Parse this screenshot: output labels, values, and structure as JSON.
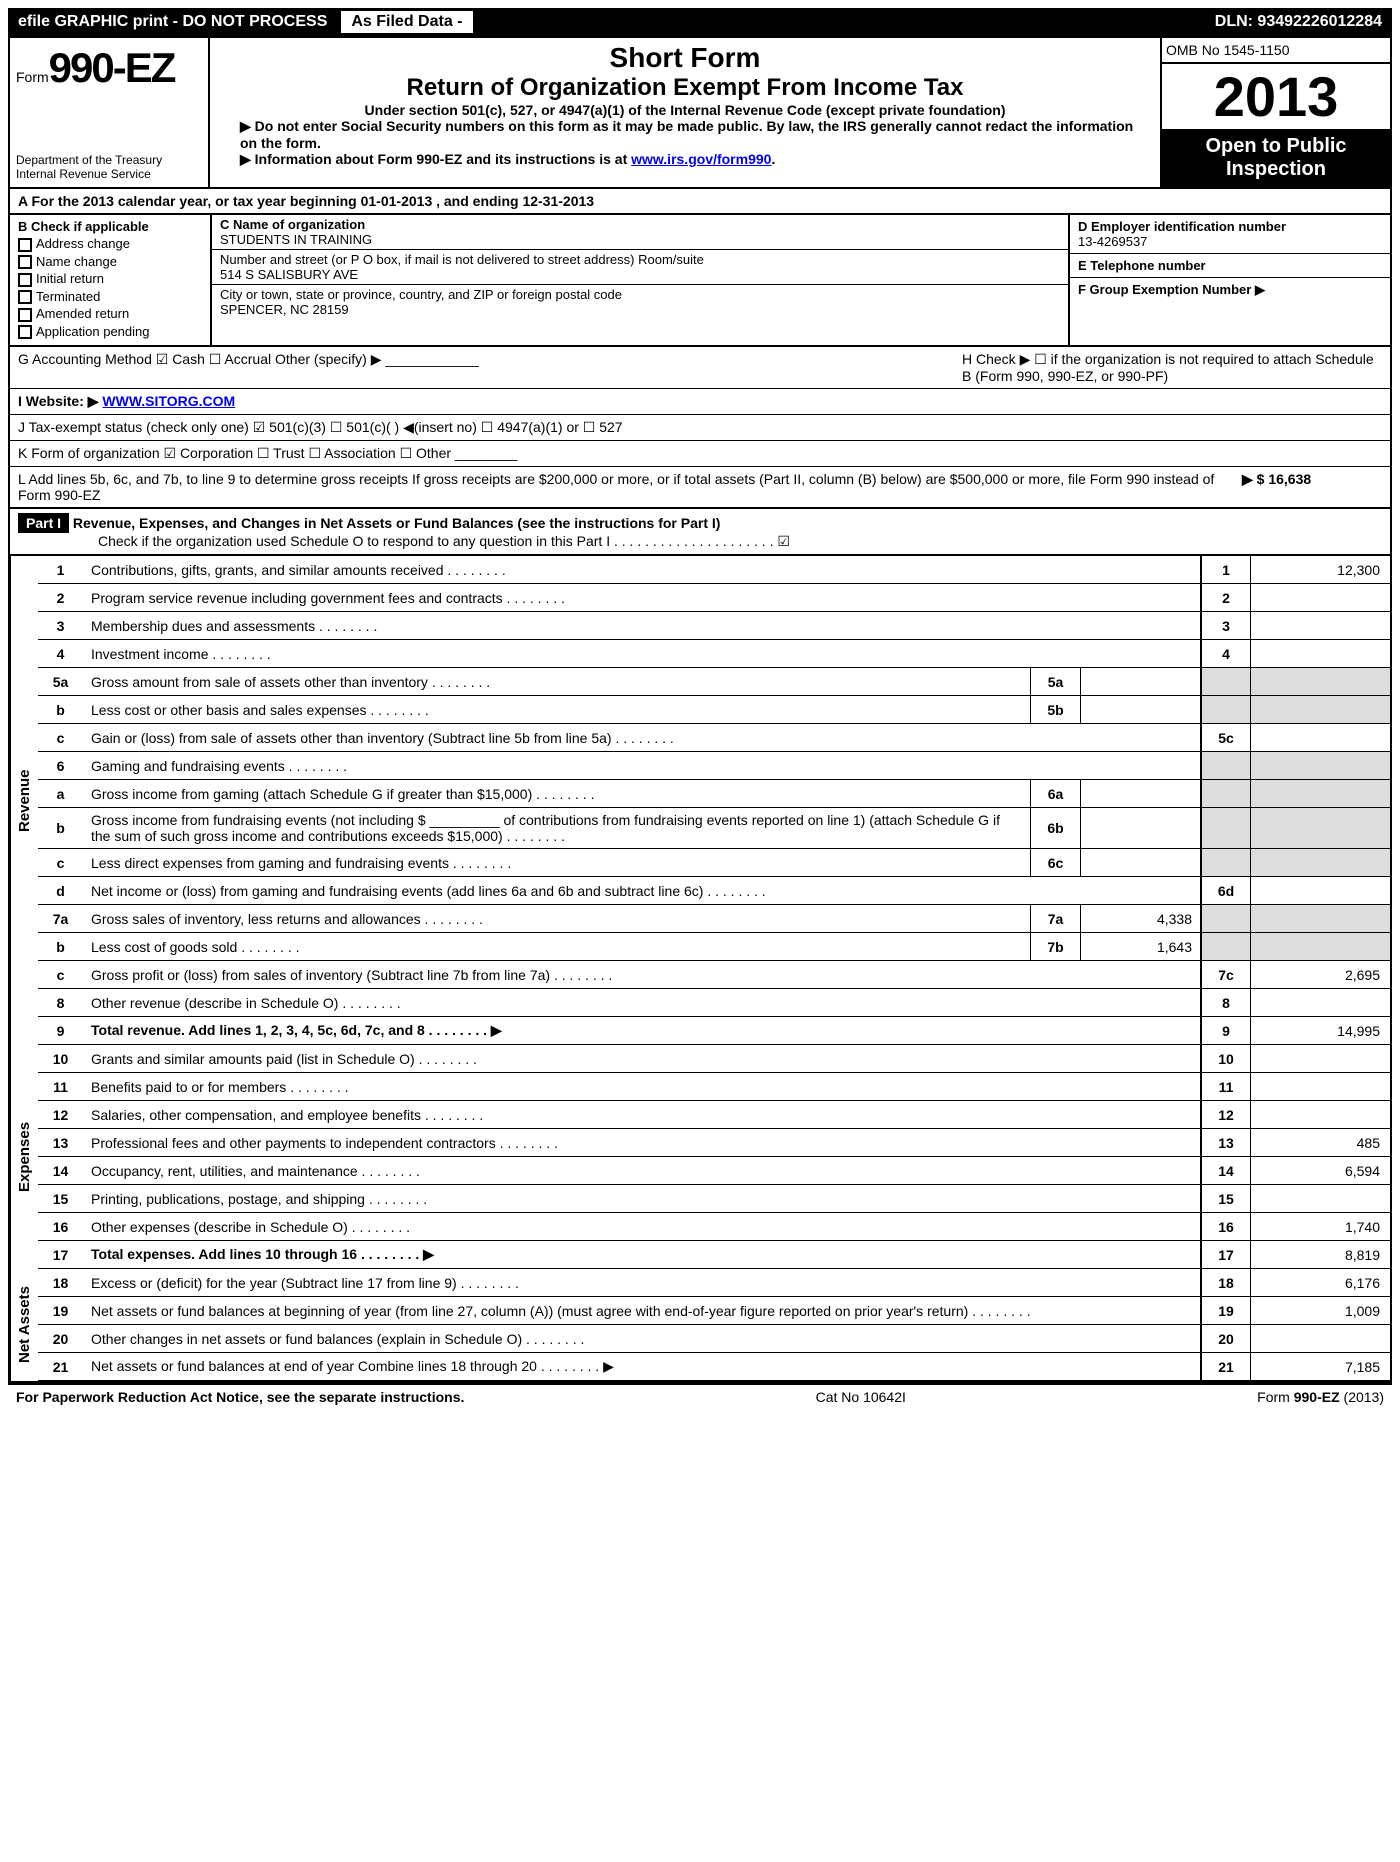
{
  "topbar": {
    "left": "efile GRAPHIC print - DO NOT PROCESS",
    "mid": "As Filed Data -",
    "right": "DLN: 93492226012284"
  },
  "header": {
    "form_prefix": "Form",
    "form_number": "990-EZ",
    "dept1": "Department of the Treasury",
    "dept2": "Internal Revenue Service",
    "title1": "Short Form",
    "title2": "Return of Organization Exempt From Income Tax",
    "sub": "Under section 501(c), 527, or 4947(a)(1) of the Internal Revenue Code (except private foundation)",
    "note1": "▶ Do not enter Social Security numbers on this form as it may be made public. By law, the IRS generally cannot redact the information on the form.",
    "note2_prefix": "▶ Information about Form 990-EZ and its instructions is at ",
    "note2_link": "www.irs.gov/form990",
    "omb": "OMB No 1545-1150",
    "year": "2013",
    "inspection1": "Open to Public",
    "inspection2": "Inspection"
  },
  "sectionA": "A  For the 2013 calendar year, or tax year beginning 01-01-2013           , and ending 12-31-2013",
  "checkB": {
    "title": "B  Check if applicable",
    "items": [
      "Address change",
      "Name change",
      "Initial return",
      "Terminated",
      "Amended return",
      "Application pending"
    ]
  },
  "org": {
    "c_label": "C Name of organization",
    "c_name": "STUDENTS IN TRAINING",
    "addr_label": "Number and street (or P O box, if mail is not delivered to street address) Room/suite",
    "addr": "514 S SALISBURY AVE",
    "city_label": "City or town, state or province, country, and ZIP or foreign postal code",
    "city": "SPENCER, NC  28159"
  },
  "right_info": {
    "d_label": "D Employer identification number",
    "d_val": "13-4269537",
    "e_label": "E Telephone number",
    "e_val": "",
    "f_label": "F Group Exemption Number    ▶",
    "f_val": ""
  },
  "rows": {
    "g": "G Accounting Method   ☑ Cash  ☐ Accrual  Other (specify) ▶ ____________",
    "h": "H  Check ▶ ☐ if the organization is not required to attach Schedule B (Form 990, 990-EZ, or 990-PF)",
    "i_prefix": "I Website: ▶ ",
    "i_link": "WWW.SITORG.COM",
    "j": "J Tax-exempt status (check only one) ☑ 501(c)(3)  ☐ 501(c)(  ) ◀(insert no)  ☐ 4947(a)(1) or  ☐ 527",
    "k": "K Form of organization   ☑ Corporation  ☐ Trust  ☐ Association  ☐ Other ________",
    "l": "L Add lines 5b, 6c, and 7b, to line 9 to determine gross receipts  If gross receipts are $200,000 or more, or if total assets (Part II, column (B) below) are $500,000 or more, file Form 990 instead of Form 990-EZ",
    "l_amount": "▶ $ 16,638"
  },
  "part1": {
    "label": "Part I",
    "title": "Revenue, Expenses, and Changes in Net Assets or Fund Balances (see the instructions for Part I)",
    "sub": "Check if the organization used Schedule O to respond to any question in this Part I  . . . . . . . . . . . . . . . . . . . . . ☑"
  },
  "sides": {
    "revenue": "Revenue",
    "expenses": "Expenses",
    "netassets": "Net Assets"
  },
  "lines": [
    {
      "n": "1",
      "d": "Contributions, gifts, grants, and similar amounts received",
      "en": "1",
      "ev": "12,300"
    },
    {
      "n": "2",
      "d": "Program service revenue including government fees and contracts",
      "en": "2",
      "ev": ""
    },
    {
      "n": "3",
      "d": "Membership dues and assessments",
      "en": "3",
      "ev": ""
    },
    {
      "n": "4",
      "d": "Investment income",
      "en": "4",
      "ev": ""
    },
    {
      "n": "5a",
      "d": "Gross amount from sale of assets other than inventory",
      "mn": "5a",
      "mv": "",
      "en": "",
      "ev": "",
      "shade": true
    },
    {
      "n": "b",
      "d": "Less  cost or other basis and sales expenses",
      "mn": "5b",
      "mv": "",
      "en": "",
      "ev": "",
      "shade": true
    },
    {
      "n": "c",
      "d": "Gain or (loss) from sale of assets other than inventory (Subtract line 5b from line 5a)",
      "en": "5c",
      "ev": ""
    },
    {
      "n": "6",
      "d": "Gaming and fundraising events",
      "en": "",
      "ev": "",
      "shade": true
    },
    {
      "n": "a",
      "d": "Gross income from gaming (attach Schedule G if greater than $15,000)",
      "mn": "6a",
      "mv": "",
      "en": "",
      "ev": "",
      "shade": true
    },
    {
      "n": "b",
      "d": "Gross income from fundraising events (not including $ _________ of contributions from fundraising events reported on line 1) (attach Schedule G if the sum of such gross income and contributions exceeds $15,000)",
      "mn": "6b",
      "mv": "",
      "en": "",
      "ev": "",
      "shade": true
    },
    {
      "n": "c",
      "d": "Less  direct expenses from gaming and fundraising events",
      "mn": "6c",
      "mv": "",
      "en": "",
      "ev": "",
      "shade": true
    },
    {
      "n": "d",
      "d": "Net income or (loss) from gaming and fundraising events (add lines 6a and 6b and subtract line 6c)",
      "en": "6d",
      "ev": ""
    },
    {
      "n": "7a",
      "d": "Gross sales of inventory, less returns and allowances",
      "mn": "7a",
      "mv": "4,338",
      "en": "",
      "ev": "",
      "shade": true
    },
    {
      "n": "b",
      "d": "Less  cost of goods sold",
      "mn": "7b",
      "mv": "1,643",
      "en": "",
      "ev": "",
      "shade": true
    },
    {
      "n": "c",
      "d": "Gross profit or (loss) from sales of inventory (Subtract line 7b from line 7a)",
      "en": "7c",
      "ev": "2,695"
    },
    {
      "n": "8",
      "d": "Other revenue (describe in Schedule O)",
      "en": "8",
      "ev": ""
    },
    {
      "n": "9",
      "d": "Total revenue. Add lines 1, 2, 3, 4, 5c, 6d, 7c, and 8",
      "bold": true,
      "arrow": true,
      "en": "9",
      "ev": "14,995"
    }
  ],
  "exp_lines": [
    {
      "n": "10",
      "d": "Grants and similar amounts paid (list in Schedule O)",
      "en": "10",
      "ev": ""
    },
    {
      "n": "11",
      "d": "Benefits paid to or for members",
      "en": "11",
      "ev": ""
    },
    {
      "n": "12",
      "d": "Salaries, other compensation, and employee benefits",
      "en": "12",
      "ev": ""
    },
    {
      "n": "13",
      "d": "Professional fees and other payments to independent contractors",
      "en": "13",
      "ev": "485"
    },
    {
      "n": "14",
      "d": "Occupancy, rent, utilities, and maintenance",
      "en": "14",
      "ev": "6,594"
    },
    {
      "n": "15",
      "d": "Printing, publications, postage, and shipping",
      "en": "15",
      "ev": ""
    },
    {
      "n": "16",
      "d": "Other expenses (describe in Schedule O)",
      "en": "16",
      "ev": "1,740"
    },
    {
      "n": "17",
      "d": "Total expenses. Add lines 10 through 16",
      "bold": true,
      "arrow": true,
      "en": "17",
      "ev": "8,819"
    }
  ],
  "net_lines": [
    {
      "n": "18",
      "d": "Excess or (deficit) for the year (Subtract line 17 from line 9)",
      "en": "18",
      "ev": "6,176"
    },
    {
      "n": "19",
      "d": "Net assets or fund balances at beginning of year (from line 27, column (A)) (must agree with end-of-year figure reported on prior year's return)",
      "en": "19",
      "ev": "1,009"
    },
    {
      "n": "20",
      "d": "Other changes in net assets or fund balances (explain in Schedule O)",
      "en": "20",
      "ev": ""
    },
    {
      "n": "21",
      "d": "Net assets or fund balances at end of year  Combine lines 18 through 20",
      "arrow": true,
      "en": "21",
      "ev": "7,185"
    }
  ],
  "footer": {
    "l": "For Paperwork Reduction Act Notice, see the separate instructions.",
    "c": "Cat No 10642I",
    "r": "Form 990-EZ (2013)"
  }
}
